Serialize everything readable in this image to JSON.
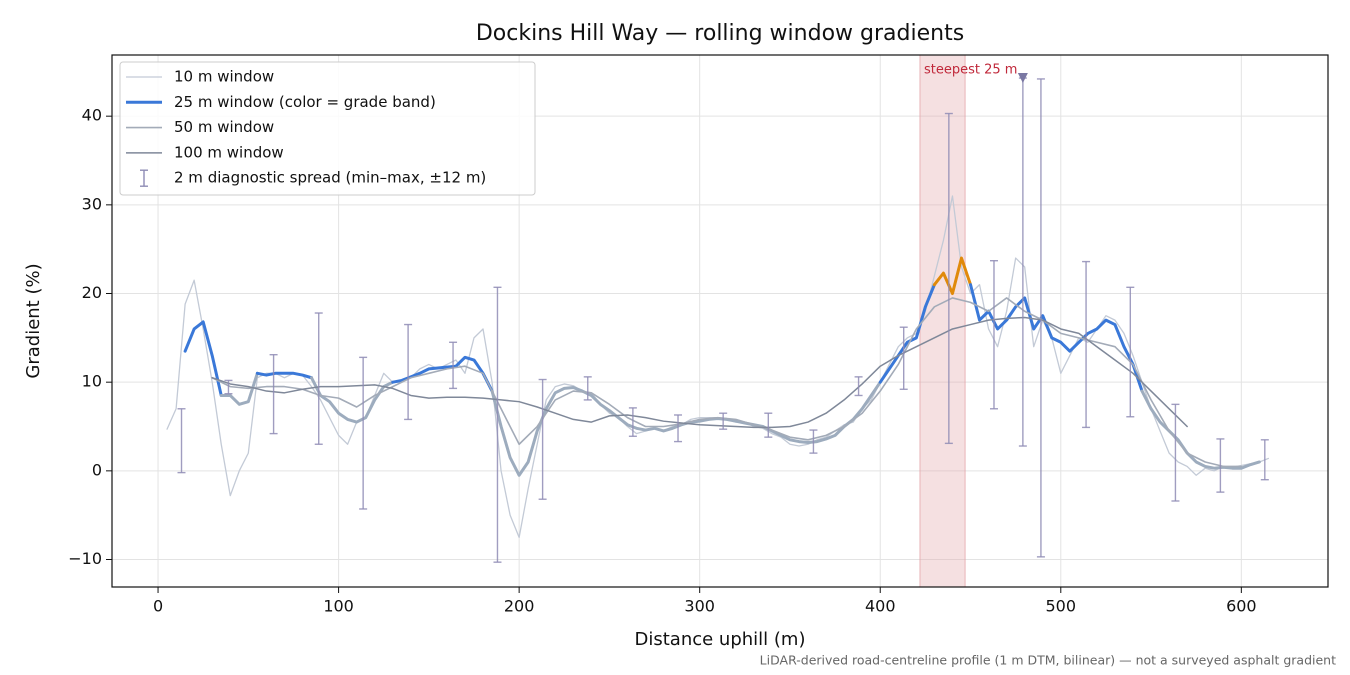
{
  "chart_data": {
    "type": "line",
    "title": "Dockins Hill Way — rolling window gradients",
    "xlabel": "Distance uphill (m)",
    "ylabel": "Gradient (%)",
    "footnote": "LiDAR-derived road-centreline profile (1 m DTM, bilinear) — not a surveyed asphalt gradient",
    "xlim": [
      -25.5,
      648
    ],
    "ylim": [
      -13.1,
      46.9
    ],
    "xticks": [
      0,
      100,
      200,
      300,
      400,
      500,
      600
    ],
    "yticks": [
      {
        "value": -10,
        "label": "−10"
      },
      0,
      10,
      20,
      30,
      40
    ],
    "grid": true,
    "legend": "upper left",
    "x": [
      5,
      10,
      15,
      20,
      25,
      30,
      35,
      40,
      45,
      50,
      55,
      60,
      65,
      70,
      75,
      80,
      85,
      90,
      95,
      100,
      105,
      110,
      115,
      120,
      125,
      130,
      135,
      140,
      145,
      150,
      155,
      160,
      165,
      170,
      175,
      180,
      185,
      190,
      195,
      200,
      205,
      210,
      215,
      220,
      225,
      230,
      235,
      240,
      245,
      250,
      255,
      260,
      265,
      270,
      275,
      280,
      285,
      290,
      295,
      300,
      305,
      310,
      315,
      320,
      325,
      330,
      335,
      340,
      345,
      350,
      355,
      360,
      365,
      370,
      375,
      380,
      385,
      390,
      395,
      400,
      405,
      410,
      415,
      420,
      425,
      430,
      435,
      440,
      445,
      450,
      455,
      460,
      465,
      470,
      475,
      480,
      485,
      490,
      495,
      500,
      505,
      510,
      515,
      520,
      525,
      530,
      535,
      540,
      545,
      550,
      555,
      560,
      565,
      570,
      575,
      580,
      585,
      590,
      595,
      600,
      605,
      610,
      615
    ],
    "series": [
      {
        "name": "10 m window",
        "color": "#c3cad6",
        "width": 1.3,
        "values": [
          4.7,
          7,
          18.8,
          21.5,
          16,
          10,
          3,
          -2.8,
          0,
          2,
          10.5,
          11,
          11,
          10.5,
          11,
          10.8,
          9.5,
          8,
          6,
          4,
          3,
          5.5,
          6,
          8.5,
          11,
          10,
          10,
          10.5,
          11.5,
          12,
          11.5,
          12,
          12.5,
          11,
          15,
          16,
          10,
          0,
          -5,
          -7.5,
          -2,
          3,
          8,
          9.5,
          9.8,
          9.6,
          9,
          8.8,
          7.5,
          6.5,
          6,
          5,
          4.2,
          4.5,
          4.8,
          4.5,
          5,
          5.2,
          5.8,
          6,
          6,
          6,
          5.8,
          5.5,
          5.5,
          5,
          4.8,
          4.2,
          3.8,
          3,
          2.8,
          3,
          3.5,
          3.8,
          4.5,
          5.2,
          5.5,
          7,
          8,
          10,
          12,
          14,
          15,
          15.5,
          18,
          22,
          26,
          31,
          23,
          20,
          21,
          16,
          14,
          18,
          24,
          23,
          14,
          17,
          15,
          11,
          13,
          15,
          14.5,
          16,
          17.5,
          17,
          15.5,
          13,
          10,
          7,
          4.5,
          2,
          1,
          0.5,
          -0.5,
          0.3,
          0,
          0.5,
          0.4,
          0.6,
          0.8,
          1,
          1.4
        ]
      },
      {
        "name": "25 m window (color = grade band)",
        "color": "#3a78d8",
        "width": 3,
        "grade_bands": {
          "thresholds": [
            10,
            20
          ],
          "colors": [
            "#9dacbe",
            "#3a78d8",
            "#e08a0b"
          ]
        },
        "values": [
          null,
          null,
          13.5,
          16,
          16.8,
          13,
          8.5,
          8.5,
          7.5,
          7.8,
          11,
          10.8,
          11,
          11,
          11,
          10.8,
          10.5,
          8.5,
          7.8,
          6.5,
          5.8,
          5.5,
          6,
          8,
          9.5,
          10,
          10.2,
          10.6,
          11,
          11.5,
          11.6,
          11.7,
          11.8,
          12.8,
          12.5,
          11,
          9,
          5,
          1.5,
          -0.5,
          1,
          4.5,
          7,
          8.8,
          9.3,
          9.4,
          9,
          8.5,
          7.5,
          6.8,
          6,
          5.2,
          4.8,
          4.6,
          4.8,
          4.5,
          4.8,
          5.2,
          5.5,
          5.6,
          5.8,
          5.9,
          5.8,
          5.6,
          5.4,
          5.2,
          5,
          4.5,
          4,
          3.5,
          3.3,
          3.2,
          3.3,
          3.6,
          4,
          5,
          5.8,
          7,
          8.5,
          10,
          11.5,
          13,
          14.5,
          15,
          18.5,
          21,
          22.3,
          20,
          24,
          21,
          17,
          18,
          16,
          17,
          18.5,
          19.5,
          16,
          17.5,
          15,
          14.5,
          13.5,
          14.5,
          15.5,
          16,
          17,
          16.5,
          14,
          12,
          9,
          7,
          5.5,
          4.5,
          3.5,
          2,
          1,
          0.5,
          0.3,
          0.4,
          0.3,
          0.3,
          0.7,
          1,
          null
        ]
      },
      {
        "name": "50 m window",
        "color": "#a3abb8",
        "width": 1.6,
        "x": [
          30,
          40,
          50,
          60,
          70,
          80,
          90,
          100,
          110,
          120,
          130,
          140,
          150,
          160,
          170,
          180,
          190,
          200,
          210,
          220,
          230,
          240,
          250,
          260,
          270,
          280,
          290,
          300,
          310,
          320,
          330,
          340,
          350,
          360,
          370,
          380,
          390,
          400,
          410,
          420,
          430,
          440,
          450,
          460,
          470,
          480,
          490,
          500,
          510,
          520,
          530,
          540,
          550,
          560,
          570,
          580,
          590,
          600
        ],
        "values": [
          10.5,
          9.5,
          9.3,
          9.5,
          9.5,
          9.2,
          8.5,
          8.2,
          7.2,
          8.5,
          9.5,
          10.5,
          11,
          11.5,
          11.8,
          11,
          7,
          3,
          5,
          8,
          9,
          8.8,
          7.5,
          6,
          5,
          5,
          5.3,
          5.8,
          6,
          5.8,
          5.2,
          4.6,
          3.8,
          3.5,
          4,
          5,
          6.5,
          9,
          12,
          16,
          18.5,
          19.5,
          19,
          18,
          19.5,
          18,
          17,
          15.5,
          15,
          14.5,
          14,
          12,
          8,
          4.5,
          2,
          1,
          0.5,
          0.5
        ]
      },
      {
        "name": "100 m window",
        "color": "#7f8899",
        "width": 1.5,
        "x": [
          30,
          40,
          50,
          60,
          70,
          80,
          90,
          100,
          110,
          120,
          130,
          140,
          150,
          160,
          170,
          180,
          190,
          200,
          210,
          220,
          230,
          240,
          250,
          260,
          270,
          280,
          290,
          300,
          310,
          320,
          330,
          340,
          350,
          360,
          370,
          380,
          390,
          400,
          410,
          420,
          430,
          440,
          450,
          460,
          470,
          480,
          490,
          500,
          510,
          520,
          530,
          540,
          550,
          560,
          570
        ],
        "values": [
          10.5,
          9.8,
          9.5,
          9,
          8.8,
          9.2,
          9.5,
          9.5,
          9.6,
          9.7,
          9.3,
          8.5,
          8.2,
          8.3,
          8.3,
          8.2,
          8,
          7.8,
          7.2,
          6.5,
          5.8,
          5.5,
          6.2,
          6.3,
          6,
          5.6,
          5.4,
          5.2,
          5.1,
          5,
          4.9,
          4.9,
          5,
          5.5,
          6.5,
          8,
          9.8,
          11.8,
          13,
          14,
          15,
          16,
          16.5,
          17,
          17.2,
          17.3,
          17,
          16,
          15.5,
          14,
          12.5,
          11,
          9,
          7,
          5
        ]
      }
    ],
    "errorbars": {
      "name": "2 m diagnostic spread (min–max, ±12 m)",
      "color": "#8f8cb5",
      "x": [
        13,
        39,
        64,
        89,
        113.6,
        138.5,
        163.4,
        188,
        213,
        238,
        263,
        288,
        313,
        338,
        363,
        388,
        413,
        438,
        463,
        479,
        489,
        514,
        538.5,
        563.5,
        588.4,
        613
      ],
      "low": [
        -0.2,
        8.7,
        4.2,
        3,
        -4.3,
        5.8,
        9.3,
        -10.3,
        -3.2,
        8,
        3.9,
        3.3,
        4.7,
        3.8,
        2,
        8.5,
        9.2,
        3.1,
        7,
        2.8,
        -9.7,
        4.9,
        6.1,
        -3.4,
        -2.4,
        -1
      ],
      "high": [
        7,
        10.2,
        13.1,
        17.8,
        12.8,
        16.5,
        14.5,
        20.7,
        10.3,
        10.6,
        7.1,
        6.3,
        6.5,
        6.5,
        4.6,
        10.6,
        16.2,
        40.3,
        23.7,
        44.3,
        44.2,
        23.6,
        20.7,
        7.5,
        3.6,
        3.5
      ]
    },
    "annotation": {
      "text": "steepest 25 m",
      "span": [
        422,
        447
      ],
      "span_color": "#e3a5aa",
      "text_color": "#c0283a",
      "marker": {
        "x": 479,
        "y": 44.3,
        "color": "#7a78a3"
      }
    }
  }
}
